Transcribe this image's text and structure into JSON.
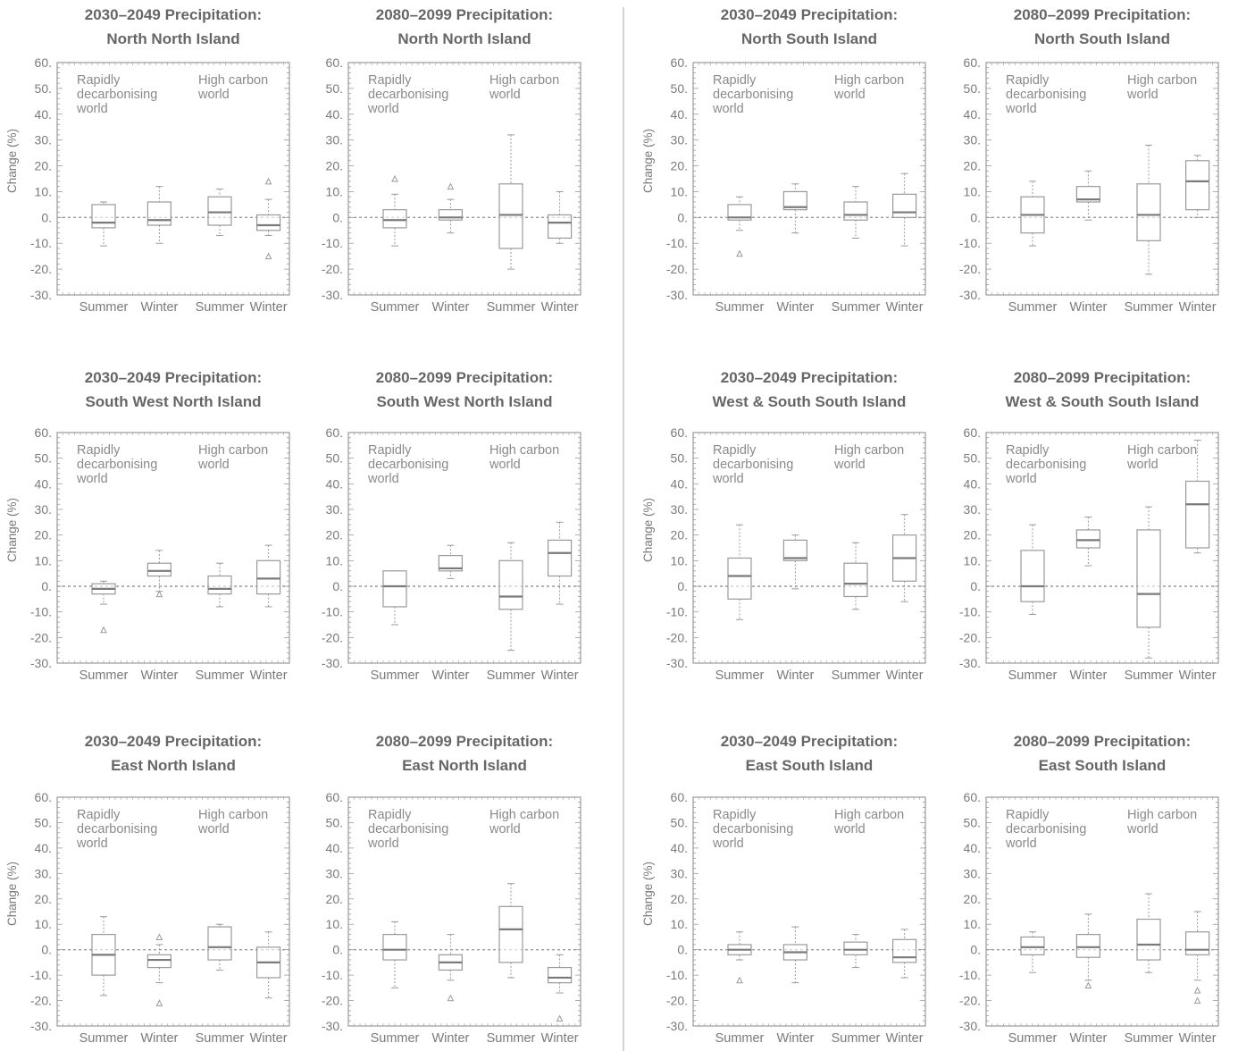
{
  "figure": {
    "colors": {
      "text": "#666666",
      "axis": "#999999",
      "box": "#9a9a9a",
      "median": "#7a7a7a",
      "zero_line": "#9a9a9a",
      "divider": "#b0b0b0"
    }
  },
  "chart_data": [
    {
      "type": "box",
      "title_line1": "2030–2049 Precipitation:",
      "title_line2": "North North Island",
      "ylabel": "Change (%)",
      "ylim": [
        -30,
        60
      ],
      "yticks": [
        "60.",
        "50.",
        "40.",
        "30.",
        "20.",
        "10.",
        "0.",
        "-10.",
        "-20.",
        "-30."
      ],
      "categories": [
        "Summer",
        "Winter",
        "Summer",
        "Winter"
      ],
      "group_labels": [
        [
          "Rapidly",
          "decarbonising",
          "world"
        ],
        [
          "High carbon",
          "world"
        ]
      ],
      "boxes": [
        {
          "group": "Rapidly decarbonising world",
          "season": "Summer",
          "min": -11,
          "q1": -4,
          "median": -2,
          "q3": 5,
          "max": 6,
          "outliers": []
        },
        {
          "group": "Rapidly decarbonising world",
          "season": "Winter",
          "min": -10,
          "q1": -3,
          "median": -1,
          "q3": 6,
          "max": 12,
          "outliers": []
        },
        {
          "group": "High carbon world",
          "season": "Summer",
          "min": -7,
          "q1": -3,
          "median": 2,
          "q3": 8,
          "max": 11,
          "outliers": []
        },
        {
          "group": "High carbon world",
          "season": "Winter",
          "min": -7,
          "q1": -5,
          "median": -3,
          "q3": 1,
          "max": 7,
          "outliers": [
            14,
            -15
          ]
        }
      ]
    },
    {
      "type": "box",
      "title_line1": "2080–2099 Precipitation:",
      "title_line2": "North North Island",
      "ylabel": "",
      "ylim": [
        -30,
        60
      ],
      "yticks": [
        "60.",
        "50.",
        "40.",
        "30.",
        "20.",
        "10.",
        "0.",
        "-10.",
        "-20.",
        "-30."
      ],
      "categories": [
        "Summer",
        "Winter",
        "Summer",
        "Winter"
      ],
      "group_labels": [
        [
          "Rapidly",
          "decarbonising",
          "world"
        ],
        [
          "High carbon",
          "world"
        ]
      ],
      "boxes": [
        {
          "group": "Rapidly decarbonising world",
          "season": "Summer",
          "min": -11,
          "q1": -4,
          "median": -1,
          "q3": 3,
          "max": 9,
          "outliers": [
            15
          ]
        },
        {
          "group": "Rapidly decarbonising world",
          "season": "Winter",
          "min": -6,
          "q1": -1,
          "median": 0,
          "q3": 3,
          "max": 7,
          "outliers": [
            12
          ]
        },
        {
          "group": "High carbon world",
          "season": "Summer",
          "min": -20,
          "q1": -12,
          "median": 1,
          "q3": 13,
          "max": 32,
          "outliers": []
        },
        {
          "group": "High carbon world",
          "season": "Winter",
          "min": -10,
          "q1": -8,
          "median": -2,
          "q3": 1,
          "max": 10,
          "outliers": []
        }
      ]
    },
    {
      "type": "box",
      "title_line1": "2030–2049 Precipitation:",
      "title_line2": "North South Island",
      "ylabel": "Change (%)",
      "ylim": [
        -30,
        60
      ],
      "yticks": [
        "60.",
        "50.",
        "40.",
        "30.",
        "20.",
        "10.",
        "0.",
        "-10.",
        "-20.",
        "-30."
      ],
      "categories": [
        "Summer",
        "Winter",
        "Summer",
        "Winter"
      ],
      "group_labels": [
        [
          "Rapidly",
          "decarbonising",
          "world"
        ],
        [
          "High carbon",
          "world"
        ]
      ],
      "boxes": [
        {
          "group": "Rapidly decarbonising world",
          "season": "Summer",
          "min": -5,
          "q1": -1,
          "median": 0,
          "q3": 5,
          "max": 8,
          "outliers": [
            -14
          ]
        },
        {
          "group": "Rapidly decarbonising world",
          "season": "Winter",
          "min": -6,
          "q1": 3,
          "median": 4,
          "q3": 10,
          "max": 13,
          "outliers": []
        },
        {
          "group": "High carbon world",
          "season": "Summer",
          "min": -8,
          "q1": -1,
          "median": 1,
          "q3": 6,
          "max": 12,
          "outliers": []
        },
        {
          "group": "High carbon world",
          "season": "Winter",
          "min": -11,
          "q1": 0,
          "median": 2,
          "q3": 9,
          "max": 17,
          "outliers": []
        }
      ]
    },
    {
      "type": "box",
      "title_line1": "2080–2099 Precipitation:",
      "title_line2": "North South Island",
      "ylabel": "",
      "ylim": [
        -30,
        60
      ],
      "yticks": [
        "60.",
        "50.",
        "40.",
        "30.",
        "20.",
        "10.",
        "0.",
        "-10.",
        "-20.",
        "-30."
      ],
      "categories": [
        "Summer",
        "Winter",
        "Summer",
        "Winter"
      ],
      "group_labels": [
        [
          "Rapidly",
          "decarbonising",
          "world"
        ],
        [
          "High carbon",
          "world"
        ]
      ],
      "boxes": [
        {
          "group": "Rapidly decarbonising world",
          "season": "Summer",
          "min": -11,
          "q1": -6,
          "median": 1,
          "q3": 8,
          "max": 14,
          "outliers": []
        },
        {
          "group": "Rapidly decarbonising world",
          "season": "Winter",
          "min": -1,
          "q1": 6,
          "median": 7,
          "q3": 12,
          "max": 18,
          "outliers": []
        },
        {
          "group": "High carbon world",
          "season": "Summer",
          "min": -22,
          "q1": -9,
          "median": 1,
          "q3": 13,
          "max": 28,
          "outliers": []
        },
        {
          "group": "High carbon world",
          "season": "Winter",
          "min": 0,
          "q1": 3,
          "median": 14,
          "q3": 22,
          "max": 24,
          "outliers": []
        }
      ]
    },
    {
      "type": "box",
      "title_line1": "2030–2049 Precipitation:",
      "title_line2": "South West North Island",
      "ylabel": "Change (%)",
      "ylim": [
        -30,
        60
      ],
      "yticks": [
        "60.",
        "50.",
        "40.",
        "30.",
        "20.",
        "10.",
        "0.",
        "-10.",
        "-20.",
        "-30."
      ],
      "categories": [
        "Summer",
        "Winter",
        "Summer",
        "Winter"
      ],
      "group_labels": [
        [
          "Rapidly",
          "decarbonising",
          "world"
        ],
        [
          "High carbon",
          "world"
        ]
      ],
      "boxes": [
        {
          "group": "Rapidly decarbonising world",
          "season": "Summer",
          "min": -7,
          "q1": -3,
          "median": -1,
          "q3": 1,
          "max": 2,
          "outliers": [
            -17
          ]
        },
        {
          "group": "Rapidly decarbonising world",
          "season": "Winter",
          "min": -2,
          "q1": 4,
          "median": 6,
          "q3": 9,
          "max": 14,
          "outliers": [
            -3
          ]
        },
        {
          "group": "High carbon world",
          "season": "Summer",
          "min": -8,
          "q1": -3,
          "median": -1,
          "q3": 4,
          "max": 9,
          "outliers": []
        },
        {
          "group": "High carbon world",
          "season": "Winter",
          "min": -8,
          "q1": -3,
          "median": 3,
          "q3": 10,
          "max": 16,
          "outliers": []
        }
      ]
    },
    {
      "type": "box",
      "title_line1": "2080–2099 Precipitation:",
      "title_line2": "South West North Island",
      "ylabel": "",
      "ylim": [
        -30,
        60
      ],
      "yticks": [
        "60.",
        "50.",
        "40.",
        "30.",
        "20.",
        "10.",
        "0.",
        "-10.",
        "-20.",
        "-30."
      ],
      "categories": [
        "Summer",
        "Winter",
        "Summer",
        "Winter"
      ],
      "group_labels": [
        [
          "Rapidly",
          "decarbonising",
          "world"
        ],
        [
          "High carbon",
          "world"
        ]
      ],
      "boxes": [
        {
          "group": "Rapidly decarbonising world",
          "season": "Summer",
          "min": -15,
          "q1": -8,
          "median": 0,
          "q3": 6,
          "max": 6,
          "outliers": []
        },
        {
          "group": "Rapidly decarbonising world",
          "season": "Winter",
          "min": 3,
          "q1": 6,
          "median": 7,
          "q3": 12,
          "max": 16,
          "outliers": []
        },
        {
          "group": "High carbon world",
          "season": "Summer",
          "min": -25,
          "q1": -9,
          "median": -4,
          "q3": 10,
          "max": 17,
          "outliers": []
        },
        {
          "group": "High carbon world",
          "season": "Winter",
          "min": -7,
          "q1": 4,
          "median": 13,
          "q3": 18,
          "max": 25,
          "outliers": []
        }
      ]
    },
    {
      "type": "box",
      "title_line1": "2030–2049 Precipitation:",
      "title_line2": "West & South South Island",
      "ylabel": "Change (%)",
      "ylim": [
        -30,
        60
      ],
      "yticks": [
        "60.",
        "50.",
        "40.",
        "30.",
        "20.",
        "10.",
        "0.",
        "-10.",
        "-20.",
        "-30."
      ],
      "categories": [
        "Summer",
        "Winter",
        "Summer",
        "Winter"
      ],
      "group_labels": [
        [
          "Rapidly",
          "decarbonising",
          "world"
        ],
        [
          "High carbon",
          "world"
        ]
      ],
      "boxes": [
        {
          "group": "Rapidly decarbonising world",
          "season": "Summer",
          "min": -13,
          "q1": -5,
          "median": 4,
          "q3": 11,
          "max": 24,
          "outliers": []
        },
        {
          "group": "Rapidly decarbonising world",
          "season": "Winter",
          "min": -1,
          "q1": 10,
          "median": 11,
          "q3": 18,
          "max": 20,
          "outliers": []
        },
        {
          "group": "High carbon world",
          "season": "Summer",
          "min": -9,
          "q1": -4,
          "median": 1,
          "q3": 9,
          "max": 17,
          "outliers": []
        },
        {
          "group": "High carbon world",
          "season": "Winter",
          "min": -6,
          "q1": 2,
          "median": 11,
          "q3": 20,
          "max": 28,
          "outliers": []
        }
      ]
    },
    {
      "type": "box",
      "title_line1": "2080–2099 Precipitation:",
      "title_line2": "West & South South Island",
      "ylabel": "",
      "ylim": [
        -30,
        60
      ],
      "yticks": [
        "60.",
        "50.",
        "40.",
        "30.",
        "20.",
        "10.",
        "0.",
        "-10.",
        "-20.",
        "-30."
      ],
      "categories": [
        "Summer",
        "Winter",
        "Summer",
        "Winter"
      ],
      "group_labels": [
        [
          "Rapidly",
          "decarbonising",
          "world"
        ],
        [
          "High carbon",
          "world"
        ]
      ],
      "boxes": [
        {
          "group": "Rapidly decarbonising world",
          "season": "Summer",
          "min": -11,
          "q1": -6,
          "median": 0,
          "q3": 14,
          "max": 24,
          "outliers": []
        },
        {
          "group": "Rapidly decarbonising world",
          "season": "Winter",
          "min": 8,
          "q1": 15,
          "median": 18,
          "q3": 22,
          "max": 27,
          "outliers": []
        },
        {
          "group": "High carbon world",
          "season": "Summer",
          "min": -28,
          "q1": -16,
          "median": -3,
          "q3": 22,
          "max": 31,
          "outliers": []
        },
        {
          "group": "High carbon world",
          "season": "Winter",
          "min": 13,
          "q1": 15,
          "median": 32,
          "q3": 41,
          "max": 57,
          "outliers": []
        }
      ]
    },
    {
      "type": "box",
      "title_line1": "2030–2049 Precipitation:",
      "title_line2": "East North Island",
      "ylabel": "Change (%)",
      "ylim": [
        -30,
        60
      ],
      "yticks": [
        "60.",
        "50.",
        "40.",
        "30.",
        "20.",
        "10.",
        "0.",
        "-10.",
        "-20.",
        "-30."
      ],
      "categories": [
        "Summer",
        "Winter",
        "Summer",
        "Winter"
      ],
      "group_labels": [
        [
          "Rapidly",
          "decarbonising",
          "world"
        ],
        [
          "High carbon",
          "world"
        ]
      ],
      "boxes": [
        {
          "group": "Rapidly decarbonising world",
          "season": "Summer",
          "min": -18,
          "q1": -10,
          "median": -2,
          "q3": 6,
          "max": 13,
          "outliers": []
        },
        {
          "group": "Rapidly decarbonising world",
          "season": "Winter",
          "min": -13,
          "q1": -7,
          "median": -4,
          "q3": -2,
          "max": 2,
          "outliers": [
            5,
            -21
          ]
        },
        {
          "group": "High carbon world",
          "season": "Summer",
          "min": -8,
          "q1": -4,
          "median": 1,
          "q3": 9,
          "max": 10,
          "outliers": []
        },
        {
          "group": "High carbon world",
          "season": "Winter",
          "min": -19,
          "q1": -11,
          "median": -5,
          "q3": 1,
          "max": 7,
          "outliers": []
        }
      ]
    },
    {
      "type": "box",
      "title_line1": "2080–2099 Precipitation:",
      "title_line2": "East North Island",
      "ylabel": "",
      "ylim": [
        -30,
        60
      ],
      "yticks": [
        "60.",
        "50.",
        "40.",
        "30.",
        "20.",
        "10.",
        "0.",
        "-10.",
        "-20.",
        "-30."
      ],
      "categories": [
        "Summer",
        "Winter",
        "Summer",
        "Winter"
      ],
      "group_labels": [
        [
          "Rapidly",
          "decarbonising",
          "world"
        ],
        [
          "High carbon",
          "world"
        ]
      ],
      "boxes": [
        {
          "group": "Rapidly decarbonising world",
          "season": "Summer",
          "min": -15,
          "q1": -4,
          "median": 0,
          "q3": 6,
          "max": 11,
          "outliers": []
        },
        {
          "group": "Rapidly decarbonising world",
          "season": "Winter",
          "min": -12,
          "q1": -8,
          "median": -5,
          "q3": -2,
          "max": 6,
          "outliers": [
            -19
          ]
        },
        {
          "group": "High carbon world",
          "season": "Summer",
          "min": -11,
          "q1": -5,
          "median": 8,
          "q3": 17,
          "max": 26,
          "outliers": []
        },
        {
          "group": "High carbon world",
          "season": "Winter",
          "min": -17,
          "q1": -13,
          "median": -11,
          "q3": -7,
          "max": -2,
          "outliers": [
            -27
          ]
        }
      ]
    },
    {
      "type": "box",
      "title_line1": "2030–2049 Precipitation:",
      "title_line2": "East South Island",
      "ylabel": "Change (%)",
      "ylim": [
        -30,
        60
      ],
      "yticks": [
        "60.",
        "50.",
        "40.",
        "30.",
        "20.",
        "10.",
        "0.",
        "-10.",
        "-20.",
        "-30."
      ],
      "categories": [
        "Summer",
        "Winter",
        "Summer",
        "Winter"
      ],
      "group_labels": [
        [
          "Rapidly",
          "decarbonising",
          "world"
        ],
        [
          "High carbon",
          "world"
        ]
      ],
      "boxes": [
        {
          "group": "Rapidly decarbonising world",
          "season": "Summer",
          "min": -4,
          "q1": -2,
          "median": 0,
          "q3": 2,
          "max": 7,
          "outliers": [
            -12
          ]
        },
        {
          "group": "Rapidly decarbonising world",
          "season": "Winter",
          "min": -13,
          "q1": -4,
          "median": -1,
          "q3": 2,
          "max": 9,
          "outliers": []
        },
        {
          "group": "High carbon world",
          "season": "Summer",
          "min": -7,
          "q1": -2,
          "median": 0,
          "q3": 3,
          "max": 6,
          "outliers": []
        },
        {
          "group": "High carbon world",
          "season": "Winter",
          "min": -11,
          "q1": -5,
          "median": -3,
          "q3": 4,
          "max": 8,
          "outliers": []
        }
      ]
    },
    {
      "type": "box",
      "title_line1": "2080–2099 Precipitation:",
      "title_line2": "East South Island",
      "ylabel": "",
      "ylim": [
        -30,
        60
      ],
      "yticks": [
        "60.",
        "50.",
        "40.",
        "30.",
        "20.",
        "10.",
        "0.",
        "-10.",
        "-20.",
        "-30."
      ],
      "categories": [
        "Summer",
        "Winter",
        "Summer",
        "Winter"
      ],
      "group_labels": [
        [
          "Rapidly",
          "decarbonising",
          "world"
        ],
        [
          "High carbon",
          "world"
        ]
      ],
      "boxes": [
        {
          "group": "Rapidly decarbonising world",
          "season": "Summer",
          "min": -9,
          "q1": -2,
          "median": 1,
          "q3": 5,
          "max": 7,
          "outliers": []
        },
        {
          "group": "Rapidly decarbonising world",
          "season": "Winter",
          "min": -12,
          "q1": -3,
          "median": 1,
          "q3": 6,
          "max": 14,
          "outliers": [
            -14
          ]
        },
        {
          "group": "High carbon world",
          "season": "Summer",
          "min": -9,
          "q1": -4,
          "median": 2,
          "q3": 12,
          "max": 22,
          "outliers": []
        },
        {
          "group": "High carbon world",
          "season": "Winter",
          "min": -12,
          "q1": -2,
          "median": 0,
          "q3": 7,
          "max": 15,
          "outliers": [
            -16,
            -20
          ]
        }
      ]
    }
  ]
}
